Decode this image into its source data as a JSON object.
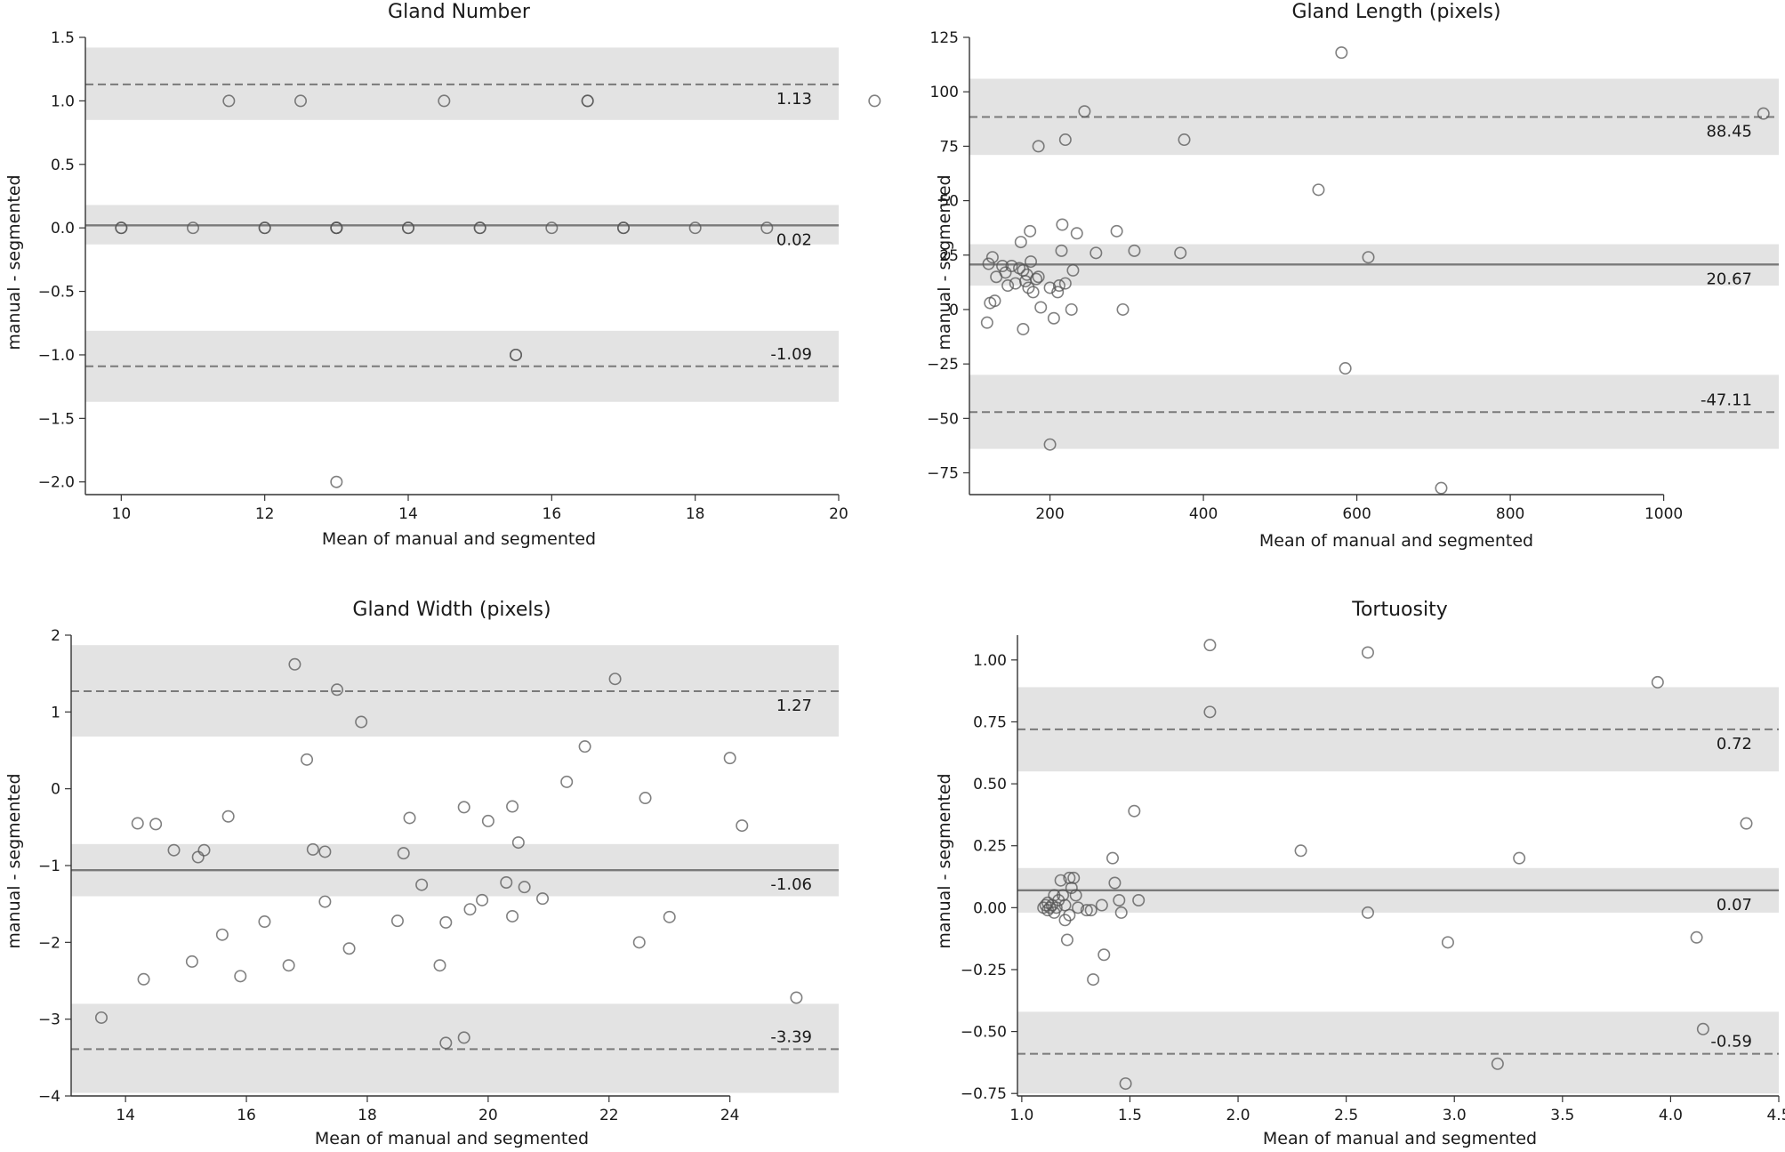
{
  "chart_data": [
    {
      "type": "scatter",
      "title": "Gland Number",
      "xlabel": "Mean of manual and segmented",
      "ylabel": "manual - segmented",
      "xlim": [
        9.5,
        20
      ],
      "ylim": [
        -2.1,
        1.5
      ],
      "xticks": [
        10,
        12,
        14,
        16,
        18,
        20
      ],
      "yticks": [
        1.5,
        1.0,
        0.5,
        0.0,
        -0.5,
        -1.0,
        -1.5,
        -2.0
      ],
      "ytick_labels": [
        "1.5",
        "1.0",
        "0.5",
        "0.0",
        "−0.5",
        "−1.0",
        "−1.5",
        "−2.0"
      ],
      "mean": 0.02,
      "upper_loa": 1.13,
      "lower_loa": -1.09,
      "mean_label": "0.02",
      "upper_label": "1.13",
      "lower_label": "-1.09",
      "bands": {
        "mean": [
          -0.13,
          0.18
        ],
        "upper": [
          0.85,
          1.42
        ],
        "lower": [
          -1.37,
          -0.81
        ]
      },
      "points": [
        [
          10,
          0
        ],
        [
          10,
          0
        ],
        [
          11,
          0
        ],
        [
          12,
          0
        ],
        [
          12,
          0
        ],
        [
          13,
          0
        ],
        [
          13,
          0
        ],
        [
          13,
          0
        ],
        [
          14,
          0
        ],
        [
          14,
          0
        ],
        [
          15,
          0
        ],
        [
          15,
          0
        ],
        [
          16,
          0
        ],
        [
          17,
          0
        ],
        [
          17,
          0
        ],
        [
          18,
          0
        ],
        [
          19,
          0
        ],
        [
          11.5,
          1
        ],
        [
          12.5,
          1
        ],
        [
          14.5,
          1
        ],
        [
          16.5,
          1
        ],
        [
          16.5,
          1
        ],
        [
          20.5,
          1
        ],
        [
          15.5,
          -1
        ],
        [
          15.5,
          -1
        ],
        [
          13,
          -2
        ]
      ]
    },
    {
      "type": "scatter",
      "title": "Gland Length (pixels)",
      "xlabel": "Mean of manual and segmented",
      "ylabel": "manual - segmented",
      "xlim": [
        95,
        1150
      ],
      "ylim": [
        -85,
        125
      ],
      "xticks": [
        200,
        400,
        600,
        800,
        1000
      ],
      "yticks": [
        125,
        100,
        75,
        50,
        25,
        0,
        -25,
        -50,
        -75
      ],
      "ytick_labels": [
        "125",
        "100",
        "75",
        "50",
        "25",
        "0",
        "−25",
        "−50",
        "−75"
      ],
      "mean": 20.67,
      "upper_loa": 88.45,
      "lower_loa": -47.11,
      "mean_label": "20.67",
      "upper_label": "88.45",
      "lower_label": "-47.11",
      "bands": {
        "mean": [
          11,
          30
        ],
        "upper": [
          71,
          106
        ],
        "lower": [
          -64,
          -30
        ]
      },
      "points": [
        [
          120,
          21
        ],
        [
          125,
          24
        ],
        [
          128,
          4
        ],
        [
          122,
          3
        ],
        [
          118,
          -6
        ],
        [
          130,
          15
        ],
        [
          138,
          20
        ],
        [
          142,
          17
        ],
        [
          145,
          11
        ],
        [
          150,
          20
        ],
        [
          155,
          12
        ],
        [
          160,
          19
        ],
        [
          162,
          31
        ],
        [
          165,
          18
        ],
        [
          168,
          13
        ],
        [
          170,
          16
        ],
        [
          172,
          10
        ],
        [
          175,
          22
        ],
        [
          174,
          36
        ],
        [
          178,
          8
        ],
        [
          182,
          14
        ],
        [
          185,
          15
        ],
        [
          165,
          -9
        ],
        [
          188,
          1
        ],
        [
          200,
          10
        ],
        [
          205,
          -4
        ],
        [
          210,
          8
        ],
        [
          212,
          11
        ],
        [
          215,
          27
        ],
        [
          216,
          39
        ],
        [
          220,
          12
        ],
        [
          228,
          0
        ],
        [
          230,
          18
        ],
        [
          235,
          35
        ],
        [
          245,
          91
        ],
        [
          260,
          26
        ],
        [
          287,
          36
        ],
        [
          295,
          0
        ],
        [
          310,
          27
        ],
        [
          185,
          75
        ],
        [
          220,
          78
        ],
        [
          370,
          26
        ],
        [
          375,
          78
        ],
        [
          550,
          55
        ],
        [
          580,
          118
        ],
        [
          585,
          -27
        ],
        [
          615,
          24
        ],
        [
          200,
          -62
        ],
        [
          710,
          -82
        ],
        [
          1130,
          90
        ]
      ]
    },
    {
      "type": "scatter",
      "title": "Gland Width (pixels)",
      "xlabel": "Mean of manual and segmented",
      "ylabel": "manual - segmented",
      "xlim": [
        13.1,
        25.8
      ],
      "ylim": [
        -4,
        2
      ],
      "xticks": [
        14,
        16,
        18,
        20,
        22,
        24
      ],
      "yticks": [
        2,
        1,
        0,
        -1,
        -2,
        -3,
        -4
      ],
      "ytick_labels": [
        "2",
        "1",
        "0",
        "−1",
        "−2",
        "−3",
        "−4"
      ],
      "mean": -1.06,
      "upper_loa": 1.27,
      "lower_loa": -3.39,
      "mean_label": "-1.06",
      "upper_label": "1.27",
      "lower_label": "-3.39",
      "bands": {
        "mean": [
          -1.4,
          -0.72
        ],
        "upper": [
          0.68,
          1.87
        ],
        "lower": [
          -3.96,
          -2.8
        ]
      },
      "points": [
        [
          13.6,
          -2.98
        ],
        [
          14.2,
          -0.45
        ],
        [
          14.3,
          -2.48
        ],
        [
          14.5,
          -0.46
        ],
        [
          14.8,
          -0.8
        ],
        [
          15.1,
          -2.25
        ],
        [
          15.2,
          -0.89
        ],
        [
          15.3,
          -0.8
        ],
        [
          15.6,
          -1.9
        ],
        [
          15.7,
          -0.36
        ],
        [
          15.9,
          -2.44
        ],
        [
          16.3,
          -1.73
        ],
        [
          16.7,
          -2.3
        ],
        [
          16.8,
          1.62
        ],
        [
          17.0,
          0.38
        ],
        [
          17.1,
          -0.79
        ],
        [
          17.3,
          -0.82
        ],
        [
          17.3,
          -1.47
        ],
        [
          17.5,
          1.29
        ],
        [
          17.7,
          -2.08
        ],
        [
          17.9,
          0.87
        ],
        [
          18.5,
          -1.72
        ],
        [
          18.6,
          -0.84
        ],
        [
          18.7,
          -0.38
        ],
        [
          18.9,
          -1.25
        ],
        [
          19.2,
          -2.3
        ],
        [
          19.3,
          -1.74
        ],
        [
          19.3,
          -3.31
        ],
        [
          19.6,
          -3.24
        ],
        [
          19.6,
          -0.24
        ],
        [
          19.7,
          -1.57
        ],
        [
          19.9,
          -1.45
        ],
        [
          20.0,
          -0.42
        ],
        [
          20.3,
          -1.22
        ],
        [
          20.4,
          -1.66
        ],
        [
          20.4,
          -0.23
        ],
        [
          20.5,
          -0.7
        ],
        [
          20.6,
          -1.28
        ],
        [
          20.9,
          -1.43
        ],
        [
          21.3,
          0.09
        ],
        [
          21.6,
          0.55
        ],
        [
          22.1,
          1.43
        ],
        [
          22.5,
          -2.0
        ],
        [
          22.6,
          -0.12
        ],
        [
          23.0,
          -1.67
        ],
        [
          24.0,
          0.4
        ],
        [
          24.2,
          -0.48
        ],
        [
          25.1,
          -2.72
        ]
      ]
    },
    {
      "type": "scatter",
      "title": "Tortuosity",
      "xlabel": "Mean of manual and segmented",
      "ylabel": "manual - segmented",
      "xlim": [
        0.98,
        4.5
      ],
      "ylim": [
        -0.76,
        1.1
      ],
      "xticks": [
        1.0,
        1.5,
        2.0,
        2.5,
        3.0,
        3.5,
        4.0,
        4.5
      ],
      "yticks": [
        1.0,
        0.75,
        0.5,
        0.25,
        0.0,
        -0.25,
        -0.5,
        -0.75
      ],
      "ytick_labels": [
        "1.00",
        "0.75",
        "0.50",
        "0.25",
        "0.00",
        "−0.25",
        "−0.50",
        "−0.75"
      ],
      "mean": 0.07,
      "upper_loa": 0.72,
      "lower_loa": -0.59,
      "mean_label": "0.07",
      "upper_label": "0.72",
      "lower_label": "-0.59",
      "bands": {
        "mean": [
          -0.02,
          0.16
        ],
        "upper": [
          0.55,
          0.89
        ],
        "lower": [
          -0.75,
          -0.42
        ]
      },
      "points": [
        [
          1.1,
          0.0
        ],
        [
          1.11,
          0.01
        ],
        [
          1.12,
          -0.01
        ],
        [
          1.12,
          0.02
        ],
        [
          1.13,
          0.0
        ],
        [
          1.14,
          0.01
        ],
        [
          1.15,
          -0.02
        ],
        [
          1.15,
          0.05
        ],
        [
          1.16,
          0.0
        ],
        [
          1.17,
          0.03
        ],
        [
          1.18,
          0.11
        ],
        [
          1.19,
          0.05
        ],
        [
          1.2,
          0.01
        ],
        [
          1.2,
          -0.05
        ],
        [
          1.21,
          -0.13
        ],
        [
          1.22,
          0.12
        ],
        [
          1.22,
          -0.03
        ],
        [
          1.23,
          0.08
        ],
        [
          1.24,
          0.12
        ],
        [
          1.25,
          0.05
        ],
        [
          1.26,
          0.0
        ],
        [
          1.3,
          -0.01
        ],
        [
          1.32,
          -0.01
        ],
        [
          1.33,
          -0.29
        ],
        [
          1.37,
          0.01
        ],
        [
          1.38,
          -0.19
        ],
        [
          1.42,
          0.2
        ],
        [
          1.43,
          0.1
        ],
        [
          1.45,
          0.03
        ],
        [
          1.46,
          -0.02
        ],
        [
          1.48,
          -0.71
        ],
        [
          1.52,
          0.39
        ],
        [
          1.54,
          0.03
        ],
        [
          1.87,
          1.06
        ],
        [
          1.87,
          0.79
        ],
        [
          2.29,
          0.23
        ],
        [
          2.6,
          -0.02
        ],
        [
          2.6,
          1.03
        ],
        [
          2.97,
          -0.14
        ],
        [
          3.2,
          -0.63
        ],
        [
          3.3,
          0.2
        ],
        [
          3.94,
          0.91
        ],
        [
          4.12,
          -0.12
        ],
        [
          4.15,
          -0.49
        ],
        [
          4.35,
          0.34
        ]
      ]
    }
  ]
}
